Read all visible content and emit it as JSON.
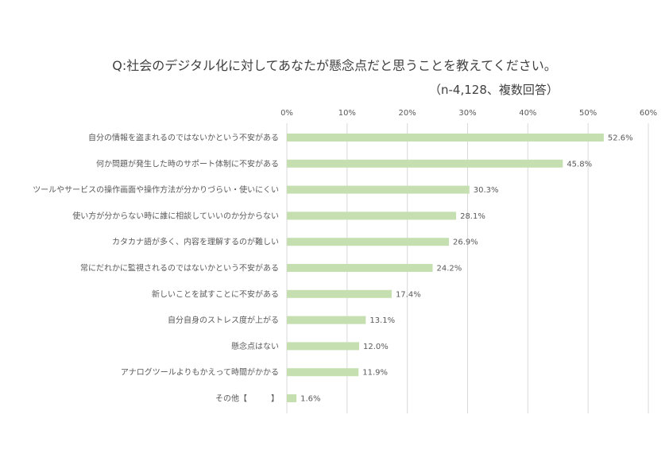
{
  "chart_data": {
    "type": "bar",
    "orientation": "horizontal",
    "title": "Q:社会のデジタル化に対してあなたが懸念点だと思うことを教えてください。",
    "subtitle": "（n-4,128、複数回答）",
    "categories": [
      "自分の情報を盗まれるのではないかという不安がある",
      "何か問題が発生した時のサポート体制に不安がある",
      "ツールやサービスの操作画面や操作方法が分かりづらい・使いにくい",
      "使い方が分からない時に誰に相談していいのか分からない",
      "カタカナ語が多く、内容を理解するのが難しい",
      "常にだれかに監視されるのではないかという不安がある",
      "新しいことを試すことに不安がある",
      "自分自身のストレス度が上がる",
      "懸念点はない",
      "アナログツールよりもかえって時間がかかる",
      "その他【　　　】"
    ],
    "values": [
      52.6,
      45.8,
      30.3,
      28.1,
      26.9,
      24.2,
      17.4,
      13.1,
      12.0,
      11.9,
      1.6
    ],
    "value_labels": [
      "52.6%",
      "45.8%",
      "30.3%",
      "28.1%",
      "26.9%",
      "24.2%",
      "17.4%",
      "13.1%",
      "12.0%",
      "11.9%",
      "1.6%"
    ],
    "xlim": [
      0,
      60
    ],
    "ticks": [
      0,
      10,
      20,
      30,
      40,
      50,
      60
    ],
    "tick_labels": [
      "0%",
      "10%",
      "20%",
      "30%",
      "40%",
      "50%",
      "60%"
    ],
    "axis_position": "top",
    "grid": true,
    "legend": "none",
    "bar_color": "#c5dfb0",
    "grid_color": "#d9d9d9",
    "text_color": "#595959"
  }
}
